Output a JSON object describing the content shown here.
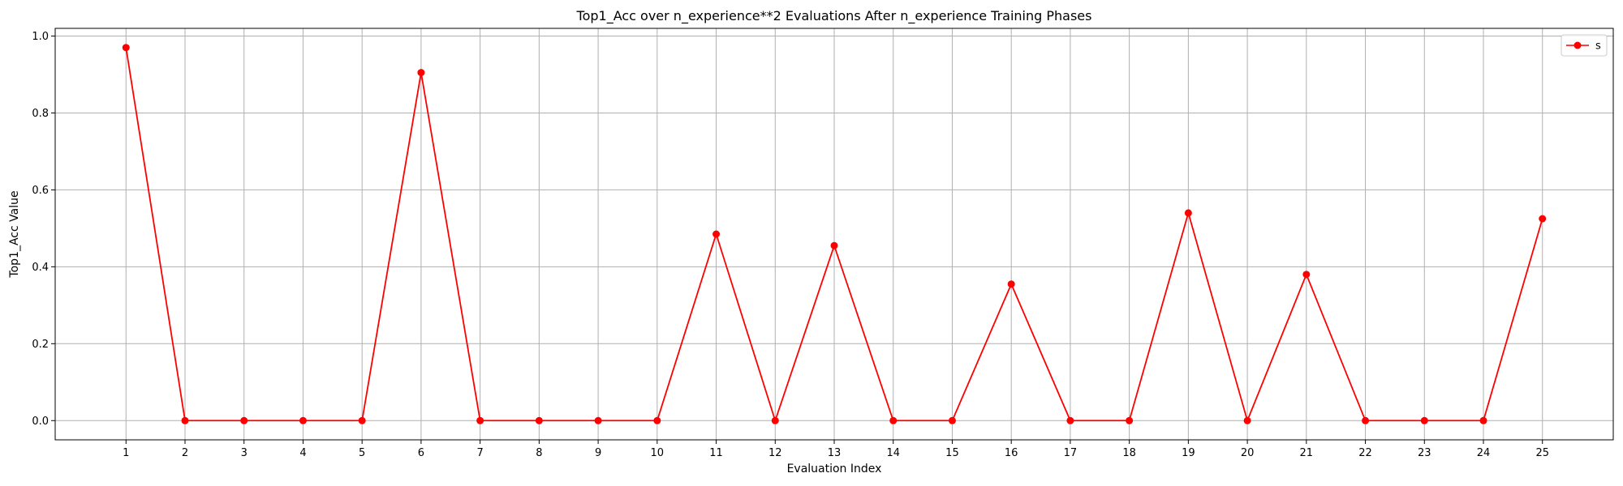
{
  "chart_data": {
    "type": "line",
    "title": "Top1_Acc over n_experience**2 Evaluations After n_experience Training Phases",
    "xlabel": "Evaluation Index",
    "ylabel": "Top1_Acc Value",
    "x": [
      1,
      2,
      3,
      4,
      5,
      6,
      7,
      8,
      9,
      10,
      11,
      12,
      13,
      14,
      15,
      16,
      17,
      18,
      19,
      20,
      21,
      22,
      23,
      24,
      25
    ],
    "x_tick_labels": [
      "1",
      "2",
      "3",
      "4",
      "5",
      "6",
      "7",
      "8",
      "9",
      "10",
      "11",
      "12",
      "13",
      "14",
      "15",
      "16",
      "17",
      "18",
      "19",
      "20",
      "21",
      "22",
      "23",
      "24",
      "25"
    ],
    "xlim": [
      -0.2,
      26.2
    ],
    "ylim": [
      -0.05,
      1.02
    ],
    "y_ticks": [
      0.0,
      0.2,
      0.4,
      0.6,
      0.8,
      1.0
    ],
    "y_tick_labels": [
      "0.0",
      "0.2",
      "0.4",
      "0.6",
      "0.8",
      "1.0"
    ],
    "grid": true,
    "legend_position": "top-right",
    "series": [
      {
        "name": "s",
        "color": "#ff0000",
        "marker": "circle",
        "values": [
          0.97,
          0.0,
          0.0,
          0.0,
          0.0,
          0.905,
          0.0,
          0.0,
          0.0,
          0.0,
          0.485,
          0.0,
          0.455,
          0.0,
          0.0,
          0.355,
          0.0,
          0.0,
          0.54,
          0.0,
          0.38,
          0.0,
          0.0,
          0.0,
          0.525
        ]
      }
    ]
  }
}
